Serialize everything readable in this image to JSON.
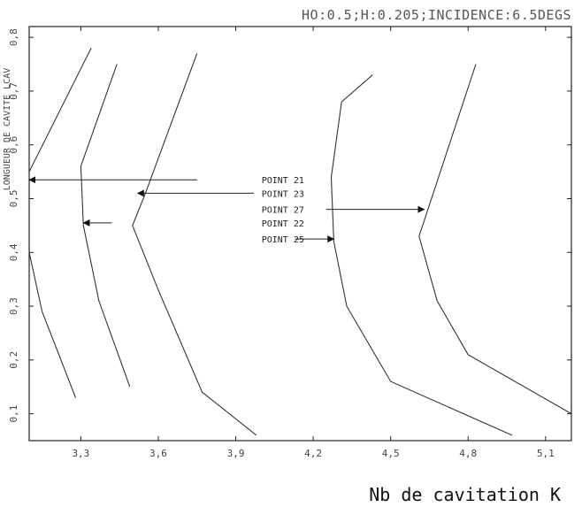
{
  "chart_data": {
    "type": "line",
    "title": "HO:0.5;H:0.205;INCIDENCE:6.5DEGS",
    "xlabel": "Nb de cavitation K",
    "ylabel": "LONGUEUR DE CAVITE LCAV",
    "xlim": [
      3.1,
      5.2
    ],
    "ylim": [
      0.05,
      0.82
    ],
    "xticks": [
      3.3,
      3.6,
      3.9,
      4.2,
      4.5,
      4.8,
      5.1
    ],
    "xtick_labels": [
      "3,3",
      "3,6",
      "3,9",
      "4,2",
      "4,5",
      "4,8",
      "5,1"
    ],
    "yticks": [
      0.1,
      0.2,
      0.3,
      0.4,
      0.5,
      0.6,
      0.7,
      0.8
    ],
    "ytick_labels": [
      "0,1",
      "0,2",
      "0,3",
      "0,4",
      "0,5",
      "0,6",
      "0,7",
      "0,8"
    ],
    "grid": false,
    "series": [
      {
        "points": [
          [
            3.1,
            0.55
          ],
          [
            3.34,
            0.78
          ]
        ]
      },
      {
        "points": [
          [
            3.1,
            0.4
          ],
          [
            3.15,
            0.29
          ],
          [
            3.28,
            0.13
          ]
        ]
      },
      {
        "points": [
          [
            3.44,
            0.75
          ],
          [
            3.3,
            0.56
          ],
          [
            3.31,
            0.45
          ],
          [
            3.37,
            0.31
          ],
          [
            3.49,
            0.15
          ]
        ]
      },
      {
        "points": [
          [
            3.75,
            0.77
          ],
          [
            3.55,
            0.51
          ],
          [
            3.5,
            0.45
          ],
          [
            3.6,
            0.33
          ],
          [
            3.77,
            0.14
          ],
          [
            3.98,
            0.06
          ]
        ]
      },
      {
        "points": [
          [
            4.43,
            0.73
          ],
          [
            4.31,
            0.68
          ],
          [
            4.27,
            0.54
          ],
          [
            4.28,
            0.42
          ],
          [
            4.33,
            0.3
          ],
          [
            4.5,
            0.16
          ],
          [
            4.97,
            0.06
          ]
        ]
      },
      {
        "points": [
          [
            4.83,
            0.75
          ],
          [
            4.61,
            0.43
          ],
          [
            4.68,
            0.31
          ],
          [
            4.8,
            0.21
          ],
          [
            5.2,
            0.1
          ]
        ]
      }
    ],
    "annotations": [
      {
        "text": "POINT 21",
        "x": 3.6,
        "y": 0.535,
        "arrow_to": [
          3.1,
          0.535
        ],
        "arrow_from": 3.75,
        "text_x": 4.0
      },
      {
        "text": "POINT 23",
        "x": 4.0,
        "y": 0.51,
        "arrow_to": [
          3.52,
          0.51
        ],
        "arrow_from": 3.97,
        "text_x": 4.0
      },
      {
        "text": "POINT 27",
        "x": 4.0,
        "y": 0.48,
        "arrow_to": [
          4.63,
          0.48
        ],
        "arrow_from": 4.25,
        "text_x": 4.0
      },
      {
        "text": "POINT 22",
        "x": 4.0,
        "y": 0.455,
        "arrow_to": [
          3.31,
          0.455
        ],
        "arrow_from": 3.42,
        "text_x": 4.0
      },
      {
        "text": "POINT 25",
        "x": 4.0,
        "y": 0.425,
        "arrow_to": [
          4.28,
          0.425
        ],
        "arrow_from": 4.13,
        "text_x": 4.0
      }
    ]
  }
}
